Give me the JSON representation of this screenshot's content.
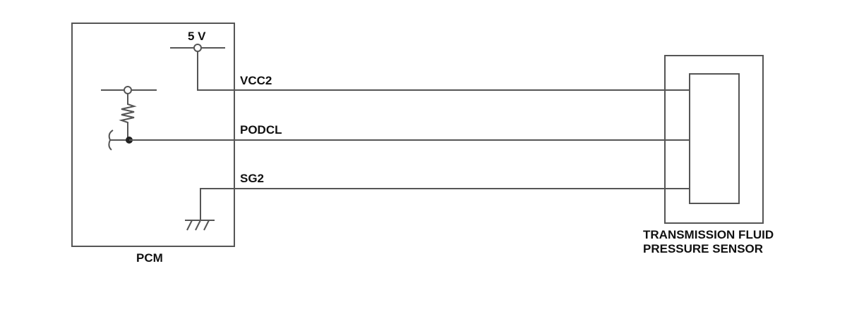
{
  "pcm": {
    "label": "PCM",
    "supply_label": "5 V"
  },
  "wires": [
    {
      "label": "VCC2"
    },
    {
      "label": "PODCL"
    },
    {
      "label": "SG2"
    }
  ],
  "sensor": {
    "label_line1": "TRANSMISSION FLUID",
    "label_line2": "PRESSURE SENSOR"
  },
  "colors": {
    "line": "#555555",
    "text": "#111111"
  }
}
